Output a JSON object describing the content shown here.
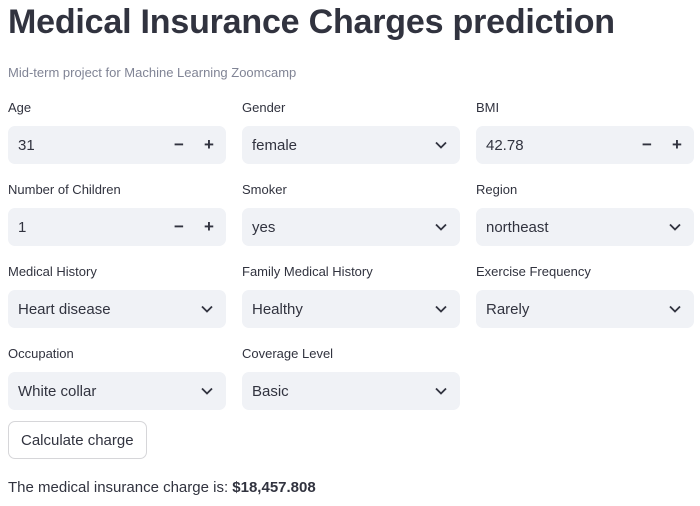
{
  "header": {
    "title": "Medical Insurance Charges prediction",
    "subtitle": "Mid-term project for Machine Learning Zoomcamp"
  },
  "fields": {
    "age": {
      "label": "Age",
      "value": "31"
    },
    "gender": {
      "label": "Gender",
      "value": "female"
    },
    "bmi": {
      "label": "BMI",
      "value": "42.78"
    },
    "children": {
      "label": "Number of Children",
      "value": "1"
    },
    "smoker": {
      "label": "Smoker",
      "value": "yes"
    },
    "region": {
      "label": "Region",
      "value": "northeast"
    },
    "medical_history": {
      "label": "Medical History",
      "value": "Heart disease"
    },
    "family_history": {
      "label": "Family Medical History",
      "value": "Healthy"
    },
    "exercise": {
      "label": "Exercise Frequency",
      "value": "Rarely"
    },
    "occupation": {
      "label": "Occupation",
      "value": "White collar"
    },
    "coverage": {
      "label": "Coverage Level",
      "value": "Basic"
    }
  },
  "stepper": {
    "minus": "−",
    "plus": "+"
  },
  "action": {
    "calculate_label": "Calculate charge"
  },
  "result": {
    "prefix": "The medical insurance charge is: ",
    "amount": "$18,457.808"
  }
}
